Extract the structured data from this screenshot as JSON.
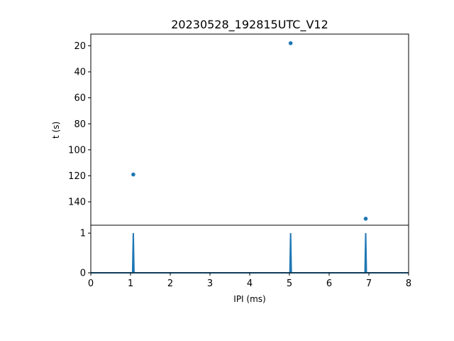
{
  "title": "20230528_192815UTC_V12",
  "chart_data": [
    {
      "type": "scatter",
      "title": "20230528_192815UTC_V12",
      "ylabel": "t (s)",
      "xlim": [
        0,
        8
      ],
      "ylim": [
        158,
        11
      ],
      "y_inverted": true,
      "yticks": [
        20,
        40,
        60,
        80,
        100,
        120,
        140
      ],
      "color": "#1f77b4",
      "grid": false,
      "points": [
        {
          "x": 1.07,
          "y": 119
        },
        {
          "x": 5.03,
          "y": 18
        },
        {
          "x": 6.92,
          "y": 153
        }
      ]
    },
    {
      "type": "line",
      "xlabel": "IPI (ms)",
      "xlim": [
        0,
        8
      ],
      "ylim": [
        0,
        1.2
      ],
      "xticks": [
        0,
        1,
        2,
        3,
        4,
        5,
        6,
        7,
        8
      ],
      "yticks": [
        0,
        1
      ],
      "color": "#1f77b4",
      "grid": false,
      "peaks": [
        {
          "x": 1.07,
          "y": 1
        },
        {
          "x": 5.03,
          "y": 1
        },
        {
          "x": 6.92,
          "y": 1
        }
      ],
      "baseline": 0
    }
  ]
}
